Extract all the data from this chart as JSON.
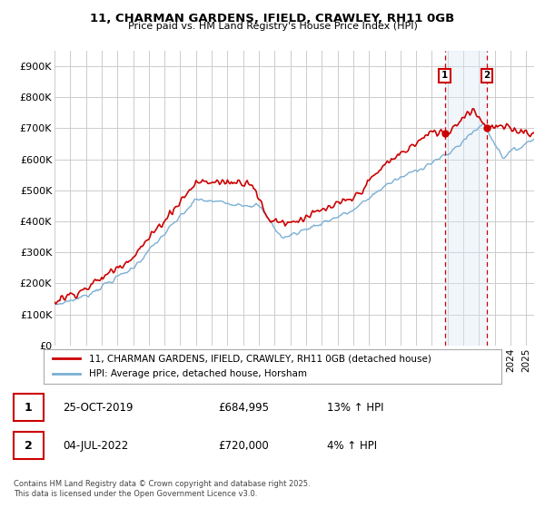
{
  "title1": "11, CHARMAN GARDENS, IFIELD, CRAWLEY, RH11 0GB",
  "title2": "Price paid vs. HM Land Registry's House Price Index (HPI)",
  "legend_label1": "11, CHARMAN GARDENS, IFIELD, CRAWLEY, RH11 0GB (detached house)",
  "legend_label2": "HPI: Average price, detached house, Horsham",
  "copyright": "Contains HM Land Registry data © Crown copyright and database right 2025.\nThis data is licensed under the Open Government Licence v3.0.",
  "sale1_label": "1",
  "sale1_date": "25-OCT-2019",
  "sale1_price": "£684,995",
  "sale1_info": "13% ↑ HPI",
  "sale2_label": "2",
  "sale2_date": "04-JUL-2022",
  "sale2_price": "£720,000",
  "sale2_info": "4% ↑ HPI",
  "sale1_year": 2019.82,
  "sale2_year": 2022.5,
  "ylim_max": 950000,
  "ylim_min": 0,
  "yticks": [
    0,
    100000,
    200000,
    300000,
    400000,
    500000,
    600000,
    700000,
    800000,
    900000
  ],
  "ytick_labels": [
    "£0",
    "£100K",
    "£200K",
    "£300K",
    "£400K",
    "£500K",
    "£600K",
    "£700K",
    "£800K",
    "£900K"
  ],
  "property_color": "#cc0000",
  "hpi_color": "#7bafd4",
  "vline_color": "#cc0000",
  "span_color": "#d8e8f5",
  "background_color": "#ffffff",
  "grid_color": "#cccccc",
  "dot_color": "#cc0000"
}
